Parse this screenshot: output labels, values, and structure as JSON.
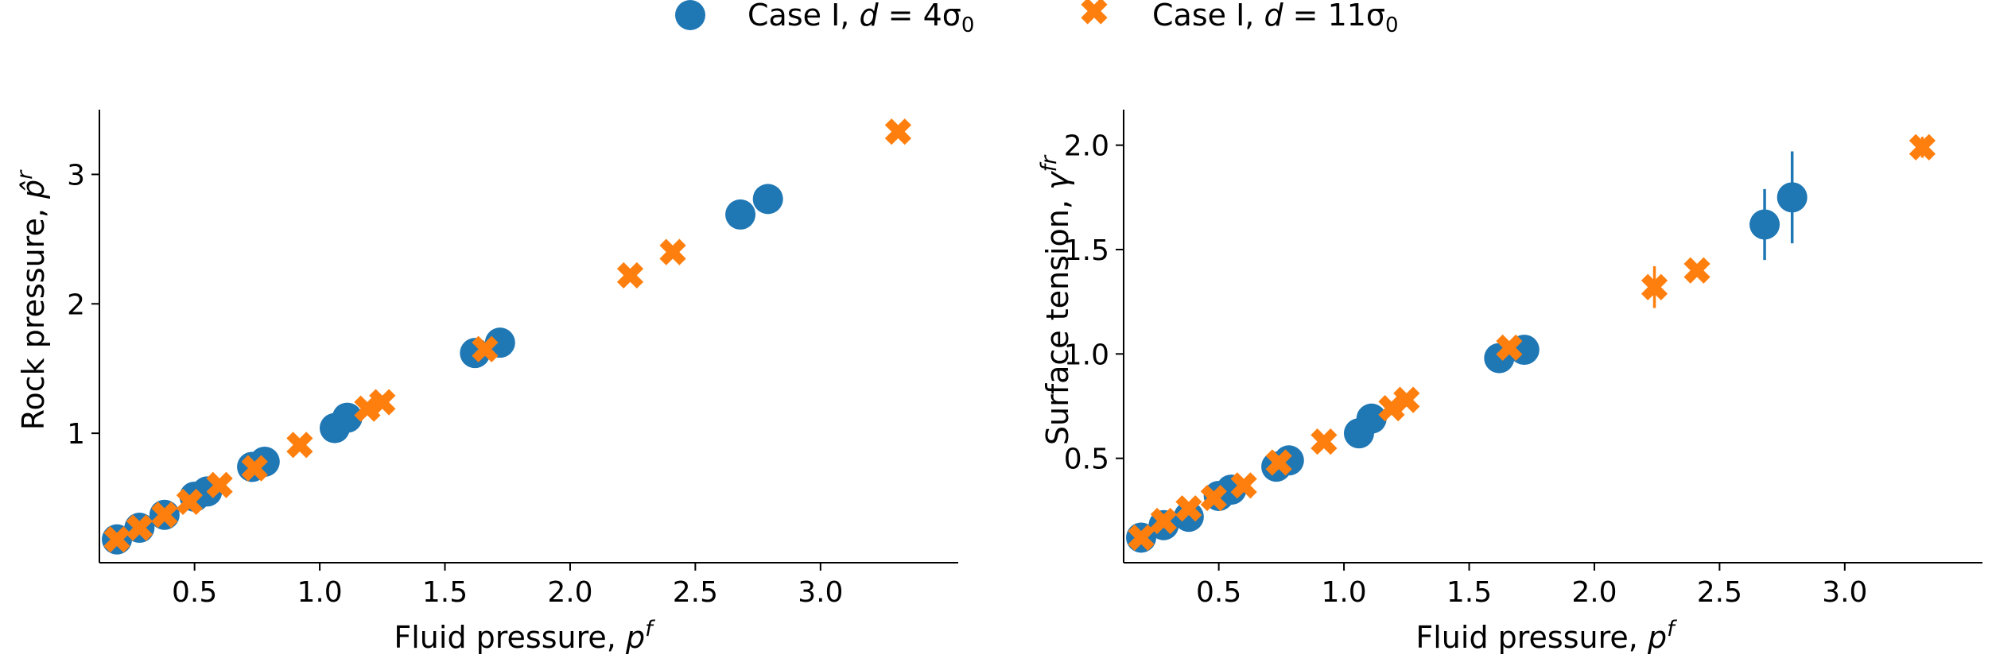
{
  "legend": {
    "placement": "top-center",
    "entries": [
      {
        "name": "Case I, d = 4σ0",
        "prefix": "Case I, ",
        "var": "d",
        "eq": " = 4σ",
        "sub": "0",
        "color": "#1f77b4",
        "marker": "circle"
      },
      {
        "name": "Case I, d = 11σ0",
        "prefix": "Case I, ",
        "var": "d",
        "eq": " = 11σ",
        "sub": "0",
        "color": "#ff7f0e",
        "marker": "x"
      }
    ]
  },
  "chart_data": [
    {
      "type": "scatter",
      "title": "",
      "xlabel": "Fluid pressure, p^f",
      "xlabel_parts": {
        "text": "Fluid pressure, ",
        "sym": "p",
        "sup": "f"
      },
      "ylabel": "Rock pressure, p̂^r",
      "ylabel_parts": {
        "text": "Rock pressure, ",
        "sym": "p̂",
        "sup": "r"
      },
      "xlim": [
        0.12,
        3.55
      ],
      "ylim": [
        0.0,
        3.5
      ],
      "xticks": [
        0.5,
        1.0,
        1.5,
        2.0,
        2.5,
        3.0
      ],
      "xtick_labels": [
        "0.5",
        "1.0",
        "1.5",
        "2.0",
        "2.5",
        "3.0"
      ],
      "yticks": [
        1,
        2,
        3
      ],
      "ytick_labels": [
        "1",
        "2",
        "3"
      ],
      "grid": false,
      "series": [
        {
          "name": "Case I, d = 4σ0",
          "x": [
            0.19,
            0.28,
            0.38,
            0.5,
            0.55,
            0.73,
            0.78,
            1.06,
            1.11,
            1.62,
            1.72,
            2.68,
            2.79
          ],
          "y": [
            0.18,
            0.27,
            0.37,
            0.51,
            0.55,
            0.74,
            0.78,
            1.04,
            1.12,
            1.62,
            1.7,
            2.69,
            2.81
          ]
        },
        {
          "name": "Case I, d = 11σ0",
          "x": [
            0.19,
            0.28,
            0.38,
            0.48,
            0.6,
            0.74,
            0.92,
            1.19,
            1.25,
            1.66,
            2.24,
            2.41,
            3.31
          ],
          "y": [
            0.18,
            0.27,
            0.37,
            0.47,
            0.6,
            0.73,
            0.91,
            1.19,
            1.24,
            1.65,
            2.22,
            2.4,
            3.33
          ]
        }
      ]
    },
    {
      "type": "scatter",
      "title": "",
      "xlabel": "Fluid pressure, p^f",
      "xlabel_parts": {
        "text": "Fluid pressure, ",
        "sym": "p",
        "sup": "f"
      },
      "ylabel": "Surface tension, γ^fr",
      "ylabel_parts": {
        "text": "Surface tension, ",
        "sym": "γ",
        "sup": "fr"
      },
      "xlim": [
        0.12,
        3.55
      ],
      "ylim": [
        0.0,
        2.17
      ],
      "xticks": [
        0.5,
        1.0,
        1.5,
        2.0,
        2.5,
        3.0
      ],
      "xtick_labels": [
        "0.5",
        "1.0",
        "1.5",
        "2.0",
        "2.5",
        "3.0"
      ],
      "yticks": [
        0.5,
        1.0,
        1.5,
        2.0
      ],
      "ytick_labels": [
        "0.5",
        "1.0",
        "1.5",
        "2.0"
      ],
      "grid": false,
      "series": [
        {
          "name": "Case I, d = 4σ0",
          "x": [
            0.19,
            0.28,
            0.38,
            0.5,
            0.55,
            0.73,
            0.78,
            1.06,
            1.11,
            1.62,
            1.72,
            2.68,
            2.79
          ],
          "y": [
            0.12,
            0.18,
            0.22,
            0.32,
            0.35,
            0.46,
            0.49,
            0.62,
            0.69,
            0.98,
            1.02,
            1.62,
            1.75
          ],
          "yerr": [
            0.01,
            0.01,
            0.01,
            0.01,
            0.01,
            0.01,
            0.01,
            0.02,
            0.02,
            0.03,
            0.03,
            0.17,
            0.22
          ]
        },
        {
          "name": "Case I, d = 11σ0",
          "x": [
            0.19,
            0.28,
            0.38,
            0.48,
            0.6,
            0.74,
            0.92,
            1.19,
            1.25,
            1.66,
            2.24,
            2.41,
            3.31
          ],
          "y": [
            0.12,
            0.2,
            0.26,
            0.31,
            0.37,
            0.48,
            0.58,
            0.74,
            0.78,
            1.03,
            1.32,
            1.4,
            1.99
          ],
          "yerr": [
            0.01,
            0.01,
            0.01,
            0.01,
            0.01,
            0.01,
            0.02,
            0.02,
            0.02,
            0.03,
            0.1,
            0.03,
            0.05
          ]
        }
      ]
    }
  ]
}
